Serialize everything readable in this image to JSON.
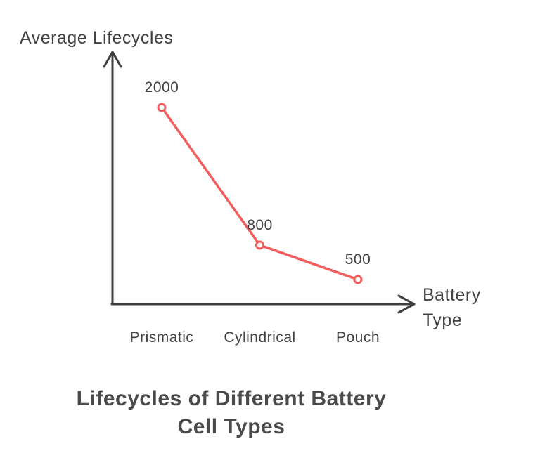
{
  "chart_data": {
    "type": "line",
    "categories": [
      "Prismatic",
      "Cylindrical",
      "Pouch"
    ],
    "values": [
      2000,
      800,
      500
    ],
    "series": [
      {
        "name": "Average Lifecycles",
        "values": [
          2000,
          800,
          500
        ]
      }
    ],
    "title": "Lifecycles of Different Battery Cell Types",
    "title_lines": [
      "Lifecycles of Different Battery",
      "Cell Types"
    ],
    "xlabel": "Battery Type",
    "xlabel_lines": [
      "Battery",
      "Type"
    ],
    "ylabel": "Average Lifecycles",
    "data_labels": [
      "2000",
      "800",
      "500"
    ],
    "ylim": [
      500,
      2000
    ],
    "grid": false,
    "legend": "none",
    "colors": {
      "line": "#f25c5c",
      "marker_fill": "#ffffff",
      "axis": "#3f3f3f",
      "text": "#424242",
      "title": "#4a4a4a",
      "background": "#ffffff"
    }
  }
}
